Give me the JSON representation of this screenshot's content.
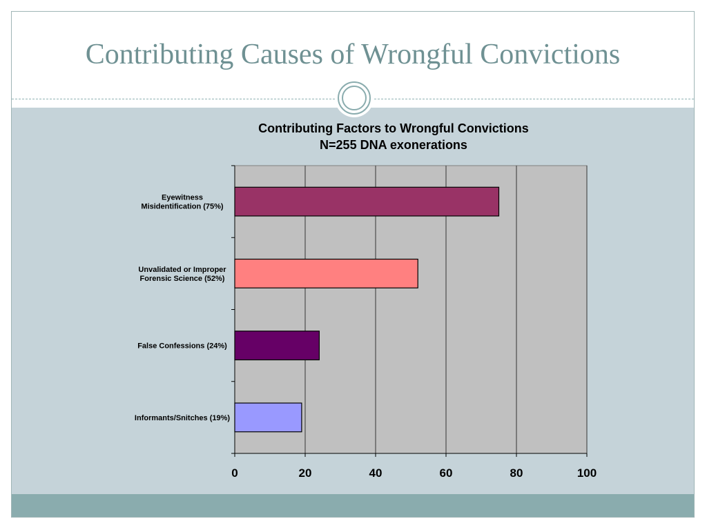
{
  "slide": {
    "title": "Contributing Causes of Wrongful Convictions"
  },
  "colors": {
    "title": "#6f9193",
    "content_background": "#c5d3d9",
    "footer_band": "#8aacae",
    "plot_background": "#c0c0c0"
  },
  "chart_data": {
    "type": "bar",
    "orientation": "horizontal",
    "title": "Contributing Factors to Wrongful Convictions",
    "subtitle": "N=255 DNA exonerations",
    "xlim": [
      0,
      100
    ],
    "x_ticks": [
      0,
      20,
      40,
      60,
      80,
      100
    ],
    "grid": "vertical",
    "legend": "none",
    "categories": [
      [
        "Eyewitness",
        "Misidentification (75%)"
      ],
      [
        "Unvalidated or Improper",
        "Forensic Science (52%)"
      ],
      [
        "False Confessions (24%)"
      ],
      [
        "Informants/Snitches (19%)"
      ]
    ],
    "values": [
      75,
      52,
      24,
      19
    ],
    "bar_colors": [
      "#993366",
      "#ff8080",
      "#660066",
      "#9999ff"
    ]
  }
}
